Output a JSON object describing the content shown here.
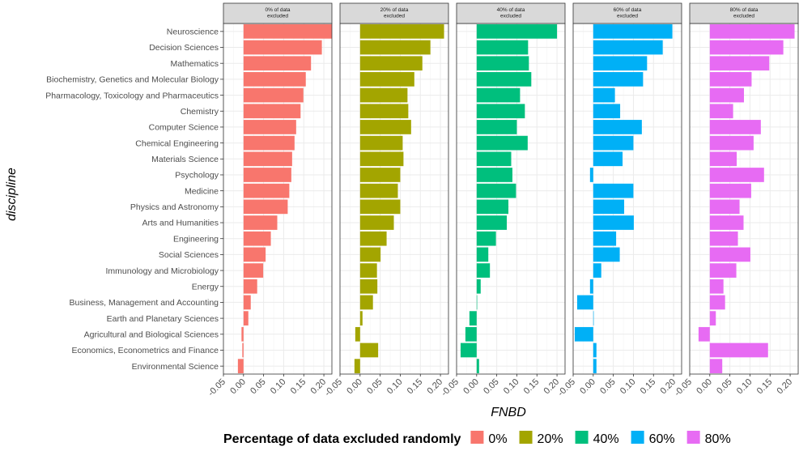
{
  "chart_data": {
    "type": "bar",
    "orientation": "horizontal",
    "facets": [
      "0% of data excluded",
      "20% of data excluded",
      "40% of data excluded",
      "60% of data excluded",
      "80% of data excluded"
    ],
    "categories": [
      "Neuroscience",
      "Decision Sciences",
      "Mathematics",
      "Biochemistry, Genetics and Molecular Biology",
      "Pharmacology, Toxicology and Pharmaceutics",
      "Chemistry",
      "Computer Science",
      "Chemical Engineering",
      "Materials Science",
      "Psychology",
      "Medicine",
      "Physics and Astronomy",
      "Arts and Humanities",
      "Engineering",
      "Social Sciences",
      "Immunology and Microbiology",
      "Energy",
      "Business, Management and Accounting",
      "Earth and Planetary Sciences",
      "Agricultural and Biological Sciences",
      "Economics, Econometrics and Finance",
      "Environmental Science"
    ],
    "series": [
      {
        "name": "0%",
        "color": "#F8766D",
        "values": [
          0.22,
          0.195,
          0.168,
          0.155,
          0.149,
          0.142,
          0.131,
          0.127,
          0.121,
          0.119,
          0.114,
          0.11,
          0.084,
          0.068,
          0.055,
          0.049,
          0.034,
          0.018,
          0.012,
          -0.005,
          -0.003,
          -0.014
        ]
      },
      {
        "name": "20%",
        "color": "#A3A500",
        "values": [
          0.209,
          0.175,
          0.155,
          0.135,
          0.118,
          0.12,
          0.127,
          0.106,
          0.108,
          0.1,
          0.094,
          0.1,
          0.084,
          0.066,
          0.051,
          0.042,
          0.043,
          0.032,
          0.006,
          -0.012,
          0.045,
          -0.014
        ]
      },
      {
        "name": "40%",
        "color": "#00BF7D",
        "values": [
          0.2,
          0.128,
          0.13,
          0.136,
          0.108,
          0.12,
          0.1,
          0.127,
          0.086,
          0.089,
          0.098,
          0.079,
          0.075,
          0.048,
          0.029,
          0.033,
          0.01,
          0.0,
          -0.018,
          -0.028,
          -0.04,
          0.006
        ]
      },
      {
        "name": "60%",
        "color": "#00B0F6",
        "values": [
          0.197,
          0.173,
          0.134,
          0.124,
          0.054,
          0.067,
          0.121,
          0.1,
          0.073,
          -0.008,
          0.1,
          0.077,
          0.101,
          0.057,
          0.066,
          0.02,
          -0.008,
          -0.04,
          0.0,
          -0.046,
          0.008,
          0.008
        ]
      },
      {
        "name": "80%",
        "color": "#E76BF3",
        "values": [
          0.211,
          0.183,
          0.148,
          0.104,
          0.085,
          0.058,
          0.127,
          0.109,
          0.067,
          0.135,
          0.103,
          0.074,
          0.084,
          0.07,
          0.101,
          0.066,
          0.034,
          0.038,
          0.015,
          -0.028,
          0.145,
          0.031
        ]
      }
    ],
    "xlim": [
      -0.05,
      0.22
    ],
    "x_ticks": [
      -0.05,
      0.0,
      0.05,
      0.1,
      0.15,
      0.2
    ],
    "x_tick_labels": [
      "-0.05",
      "0.00",
      "0.05",
      "0.10",
      "0.15",
      "0.20"
    ],
    "xlabel": "FNBD",
    "ylabel": "discipline",
    "legend": {
      "title": "Percentage of data excluded randomly",
      "position": "bottom",
      "labels": [
        "0%",
        "20%",
        "40%",
        "60%",
        "80%"
      ]
    },
    "strip_labels": [
      [
        "0% of data",
        "excluded"
      ],
      [
        "20% of data",
        "excluded"
      ],
      [
        "40% of data",
        "excluded"
      ],
      [
        "60% of data",
        "excluded"
      ],
      [
        "80% of data",
        "excluded"
      ]
    ],
    "grid": true
  }
}
